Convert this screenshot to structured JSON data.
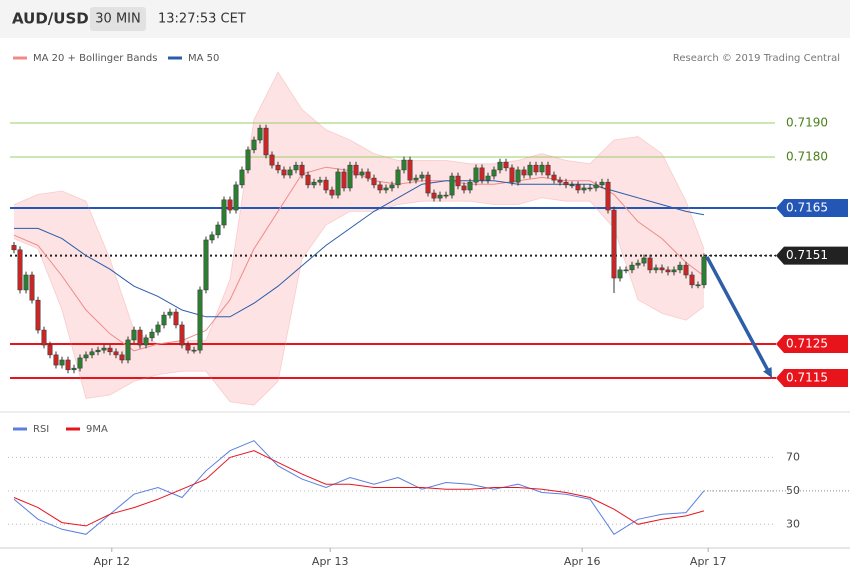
{
  "chart_data": [
    {
      "type": "candlestick",
      "title": "AUD/USD",
      "interval": "30 MIN",
      "time": "13:27:53 CET",
      "source": "Research © 2019 Trading Central",
      "xlim": [
        -2,
        131
      ],
      "ylim": [
        0.7105,
        0.721
      ],
      "up_color": "#2e7d32",
      "down_color": "#c62828",
      "band_color": "#fde3e3",
      "candles": [
        [
          0.7154,
          0.7155,
          0.71517,
          0.71527
        ],
        [
          0.71527,
          0.71537,
          0.71399,
          0.71409
        ],
        [
          0.71409,
          0.71463,
          0.71399,
          0.71453
        ],
        [
          0.71453,
          0.71463,
          0.71369,
          0.71379
        ],
        [
          0.71379,
          0.71389,
          0.71281,
          0.71291
        ],
        [
          0.71291,
          0.71301,
          0.71237,
          0.71247
        ],
        [
          0.71247,
          0.71257,
          0.71208,
          0.71218
        ],
        [
          0.71218,
          0.71228,
          0.71178,
          0.71188
        ],
        [
          0.71188,
          0.71213,
          0.71178,
          0.71203
        ],
        [
          0.71203,
          0.71213,
          0.71164,
          0.71174
        ],
        [
          0.71174,
          0.71189,
          0.71164,
          0.71179
        ],
        [
          0.71179,
          0.71219,
          0.71169,
          0.71209
        ],
        [
          0.71209,
          0.71228,
          0.71199,
          0.71218
        ],
        [
          0.71218,
          0.71237,
          0.71208,
          0.71227
        ],
        [
          0.71227,
          0.71242,
          0.71217,
          0.71232
        ],
        [
          0.71232,
          0.71248,
          0.71222,
          0.71238
        ],
        [
          0.71238,
          0.71248,
          0.71217,
          0.71227
        ],
        [
          0.71227,
          0.71237,
          0.71208,
          0.71218
        ],
        [
          0.71218,
          0.71228,
          0.71193,
          0.71203
        ],
        [
          0.71203,
          0.71272,
          0.71193,
          0.71262
        ],
        [
          0.71262,
          0.71301,
          0.71252,
          0.71291
        ],
        [
          0.71291,
          0.71301,
          0.71237,
          0.71247
        ],
        [
          0.71247,
          0.71278,
          0.71237,
          0.71268
        ],
        [
          0.71268,
          0.71295,
          0.71258,
          0.71285
        ],
        [
          0.71285,
          0.71316,
          0.71275,
          0.71306
        ],
        [
          0.71306,
          0.71345,
          0.71296,
          0.71335
        ],
        [
          0.71335,
          0.71354,
          0.71325,
          0.71344
        ],
        [
          0.71344,
          0.71354,
          0.71296,
          0.71306
        ],
        [
          0.71306,
          0.71316,
          0.71237,
          0.71247
        ],
        [
          0.71247,
          0.71257,
          0.71222,
          0.71232
        ],
        [
          0.71232,
          0.71242,
          0.71222,
          0.71232
        ],
        [
          0.71232,
          0.71419,
          0.71222,
          0.71409
        ],
        [
          0.71409,
          0.71566,
          0.71399,
          0.71556
        ],
        [
          0.71556,
          0.71581,
          0.71546,
          0.71571
        ],
        [
          0.71571,
          0.7161,
          0.71561,
          0.716
        ],
        [
          0.716,
          0.71684,
          0.7159,
          0.71674
        ],
        [
          0.71674,
          0.71684,
          0.71634,
          0.71644
        ],
        [
          0.71644,
          0.71728,
          0.71634,
          0.71718
        ],
        [
          0.71718,
          0.71772,
          0.71708,
          0.71762
        ],
        [
          0.71762,
          0.71831,
          0.71752,
          0.71821
        ],
        [
          0.71821,
          0.7186,
          0.71811,
          0.7185
        ],
        [
          0.7185,
          0.71895,
          0.7184,
          0.71885
        ],
        [
          0.71885,
          0.71895,
          0.71796,
          0.71806
        ],
        [
          0.71806,
          0.71816,
          0.71766,
          0.71776
        ],
        [
          0.71776,
          0.71786,
          0.71752,
          0.71762
        ],
        [
          0.71762,
          0.71772,
          0.71737,
          0.71747
        ],
        [
          0.71747,
          0.71772,
          0.71737,
          0.71762
        ],
        [
          0.71762,
          0.71786,
          0.71752,
          0.71776
        ],
        [
          0.71776,
          0.71786,
          0.71737,
          0.71747
        ],
        [
          0.71747,
          0.71757,
          0.71708,
          0.71718
        ],
        [
          0.71718,
          0.71736,
          0.71708,
          0.71726
        ],
        [
          0.71726,
          0.71742,
          0.71716,
          0.71732
        ],
        [
          0.71732,
          0.71742,
          0.71693,
          0.71703
        ],
        [
          0.71703,
          0.71713,
          0.71678,
          0.71688
        ],
        [
          0.71688,
          0.71766,
          0.71678,
          0.71756
        ],
        [
          0.71756,
          0.71766,
          0.71699,
          0.71709
        ],
        [
          0.71709,
          0.71786,
          0.71699,
          0.71776
        ],
        [
          0.71776,
          0.71786,
          0.71737,
          0.71747
        ],
        [
          0.71747,
          0.71766,
          0.71737,
          0.71756
        ],
        [
          0.71756,
          0.71766,
          0.71728,
          0.71738
        ],
        [
          0.71738,
          0.71748,
          0.71708,
          0.71718
        ],
        [
          0.71718,
          0.71728,
          0.71693,
          0.71703
        ],
        [
          0.71703,
          0.71719,
          0.71693,
          0.71709
        ],
        [
          0.71709,
          0.71728,
          0.71699,
          0.71718
        ],
        [
          0.71718,
          0.71772,
          0.71708,
          0.71762
        ],
        [
          0.71762,
          0.71801,
          0.71752,
          0.71791
        ],
        [
          0.71791,
          0.71801,
          0.71722,
          0.71732
        ],
        [
          0.71732,
          0.71748,
          0.71722,
          0.71738
        ],
        [
          0.71738,
          0.71757,
          0.71728,
          0.71747
        ],
        [
          0.71747,
          0.71757,
          0.71684,
          0.71694
        ],
        [
          0.71694,
          0.71704,
          0.71669,
          0.71679
        ],
        [
          0.71679,
          0.71698,
          0.71669,
          0.71688
        ],
        [
          0.71688,
          0.71698,
          0.71678,
          0.71688
        ],
        [
          0.71688,
          0.71754,
          0.71678,
          0.71744
        ],
        [
          0.71744,
          0.71754,
          0.71705,
          0.71715
        ],
        [
          0.71715,
          0.71725,
          0.71693,
          0.71703
        ],
        [
          0.71703,
          0.71736,
          0.71693,
          0.71726
        ],
        [
          0.71726,
          0.71778,
          0.71716,
          0.71768
        ],
        [
          0.71768,
          0.71778,
          0.71722,
          0.71732
        ],
        [
          0.71732,
          0.71754,
          0.71722,
          0.71744
        ],
        [
          0.71744,
          0.71772,
          0.71734,
          0.71762
        ],
        [
          0.71762,
          0.71795,
          0.71752,
          0.71785
        ],
        [
          0.71785,
          0.71795,
          0.71758,
          0.71768
        ],
        [
          0.71768,
          0.71778,
          0.71716,
          0.71726
        ],
        [
          0.71726,
          0.71772,
          0.71716,
          0.71762
        ],
        [
          0.71762,
          0.71772,
          0.71737,
          0.71747
        ],
        [
          0.71747,
          0.71786,
          0.71737,
          0.71776
        ],
        [
          0.71776,
          0.71786,
          0.71746,
          0.71756
        ],
        [
          0.71756,
          0.71786,
          0.71746,
          0.71776
        ],
        [
          0.71776,
          0.71786,
          0.71737,
          0.71747
        ],
        [
          0.71747,
          0.71757,
          0.71722,
          0.71732
        ],
        [
          0.71732,
          0.71742,
          0.71716,
          0.71726
        ],
        [
          0.71726,
          0.71736,
          0.71708,
          0.71718
        ],
        [
          0.71718,
          0.71728,
          0.71708,
          0.71718
        ],
        [
          0.71718,
          0.71728,
          0.71693,
          0.71703
        ],
        [
          0.71703,
          0.71719,
          0.71693,
          0.71709
        ],
        [
          0.71709,
          0.71719,
          0.71699,
          0.71709
        ],
        [
          0.71709,
          0.71728,
          0.71699,
          0.71718
        ],
        [
          0.71718,
          0.71736,
          0.71708,
          0.71726
        ],
        [
          0.71726,
          0.71736,
          0.71634,
          0.71644
        ],
        [
          0.71644,
          0.71654,
          0.714,
          0.71444
        ],
        [
          0.71444,
          0.71478,
          0.71434,
          0.71468
        ],
        [
          0.71468,
          0.71478,
          0.71458,
          0.71468
        ],
        [
          0.71468,
          0.71492,
          0.71458,
          0.71482
        ],
        [
          0.71482,
          0.71498,
          0.71472,
          0.71488
        ],
        [
          0.71488,
          0.71513,
          0.71478,
          0.71503
        ],
        [
          0.71503,
          0.71513,
          0.71458,
          0.71468
        ],
        [
          0.71468,
          0.71484,
          0.71458,
          0.71474
        ],
        [
          0.71474,
          0.71484,
          0.71458,
          0.71468
        ],
        [
          0.71468,
          0.71478,
          0.71452,
          0.71462
        ],
        [
          0.71462,
          0.71478,
          0.71452,
          0.71468
        ],
        [
          0.71468,
          0.71492,
          0.71458,
          0.71482
        ],
        [
          0.71482,
          0.71492,
          0.71443,
          0.71453
        ],
        [
          0.71453,
          0.71463,
          0.71414,
          0.71424
        ],
        [
          0.71424,
          0.71434,
          0.71414,
          0.71424
        ],
        [
          0.71424,
          0.71516,
          0.71414,
          0.71506
        ]
      ],
      "x": [
        0,
        4,
        8,
        12,
        16,
        20,
        24,
        28,
        32,
        36,
        40,
        44,
        48,
        52,
        56,
        60,
        64,
        68,
        72,
        76,
        80,
        84,
        88,
        92,
        96,
        100,
        104,
        108,
        112,
        115
      ],
      "series": [
        {
          "name": "MA 20 + Bollinger Bands",
          "color": "#f08a8a",
          "values": [
            0.7157,
            0.7154,
            0.7145,
            0.7135,
            0.7128,
            0.7123,
            0.7125,
            0.7126,
            0.7129,
            0.7138,
            0.7153,
            0.7164,
            0.7175,
            0.7177,
            0.7176,
            0.7173,
            0.7172,
            0.7173,
            0.7173,
            0.7172,
            0.7172,
            0.7173,
            0.7174,
            0.7173,
            0.7173,
            0.7169,
            0.7161,
            0.7156,
            0.7149,
            0.7145
          ],
          "upper": [
            0.7166,
            0.7169,
            0.717,
            0.7167,
            0.715,
            0.7129,
            0.7125,
            0.7126,
            0.7126,
            0.7144,
            0.7191,
            0.7205,
            0.7194,
            0.7188,
            0.7185,
            0.7181,
            0.7179,
            0.7179,
            0.7179,
            0.7178,
            0.7178,
            0.7179,
            0.7181,
            0.7179,
            0.7178,
            0.7185,
            0.7186,
            0.7181,
            0.7167,
            0.7153
          ],
          "lower": [
            0.7156,
            0.7153,
            0.7135,
            0.7109,
            0.711,
            0.7114,
            0.7116,
            0.7117,
            0.7117,
            0.7108,
            0.7107,
            0.7114,
            0.715,
            0.716,
            0.7164,
            0.7164,
            0.7166,
            0.7167,
            0.7167,
            0.7167,
            0.7166,
            0.7166,
            0.7168,
            0.7167,
            0.7167,
            0.7159,
            0.7138,
            0.7134,
            0.7132,
            0.7136
          ]
        },
        {
          "name": "MA 50",
          "color": "#2a5caa",
          "values": [
            0.7159,
            0.7159,
            0.7156,
            0.7151,
            0.7147,
            0.7142,
            0.7139,
            0.7135,
            0.7133,
            0.7133,
            0.7137,
            0.7142,
            0.7148,
            0.7154,
            0.7159,
            0.7164,
            0.7168,
            0.7172,
            0.7173,
            0.7173,
            0.7173,
            0.7172,
            0.7172,
            0.7172,
            0.7172,
            0.717,
            0.7168,
            0.7166,
            0.7164,
            0.7163
          ]
        }
      ],
      "levels": [
        {
          "value": 0.719,
          "label": "0.7190",
          "color": "#9acd6a",
          "text_color": "#4a7f1a",
          "box": false,
          "dashed": false
        },
        {
          "value": 0.718,
          "label": "0.7180",
          "color": "#9acd6a",
          "text_color": "#4a7f1a",
          "box": false,
          "dashed": false
        },
        {
          "value": 0.7165,
          "color": "#2457b5",
          "text_color": "#ffffff",
          "box": true,
          "dashed": false
        },
        {
          "value": 0.7151,
          "color": "#222222",
          "text_color": "#ffffff",
          "box": true,
          "dashed": true
        },
        {
          "value": 0.7125,
          "color": "#e8141c",
          "text_color": "#ffffff",
          "box": true,
          "dashed": false
        },
        {
          "value": 0.7115,
          "color": "#e8141c",
          "text_color": "#ffffff",
          "box": true,
          "dashed": false
        }
      ],
      "target": 0.7115,
      "arrow_color": "#2e5ea8"
    },
    {
      "type": "line",
      "xlim": [
        -2,
        131
      ],
      "ylim": [
        14,
        90
      ],
      "yticks": [
        30,
        50,
        70
      ],
      "grid": true,
      "x": [
        0,
        4,
        8,
        12,
        16,
        20,
        24,
        28,
        32,
        36,
        40,
        44,
        48,
        52,
        56,
        60,
        64,
        68,
        72,
        76,
        80,
        84,
        88,
        92,
        96,
        100,
        104,
        108,
        112,
        115
      ],
      "xticks": [
        {
          "value": 16.3,
          "label": "Apr 12"
        },
        {
          "value": 52.7,
          "label": "Apr 13"
        },
        {
          "value": 94.7,
          "label": "Apr 16"
        },
        {
          "value": 115.7,
          "label": "Apr 17"
        }
      ],
      "series": [
        {
          "name": "RSI",
          "color": "#5b7fe0",
          "values": [
            45,
            33,
            27,
            24,
            36,
            48,
            52,
            46,
            62,
            74,
            80,
            65,
            57,
            52,
            58,
            54,
            58,
            51,
            55,
            54,
            51,
            54,
            49,
            48,
            45,
            24,
            33,
            36,
            37,
            50
          ]
        },
        {
          "name": "9MA",
          "color": "#e8141c",
          "values": [
            46,
            40,
            31,
            29,
            36,
            40,
            45,
            51,
            57,
            70,
            74,
            67,
            60,
            54,
            54,
            52,
            52,
            52,
            51,
            51,
            52,
            52,
            51,
            49,
            46,
            39,
            30,
            33,
            35,
            38
          ]
        }
      ]
    }
  ]
}
